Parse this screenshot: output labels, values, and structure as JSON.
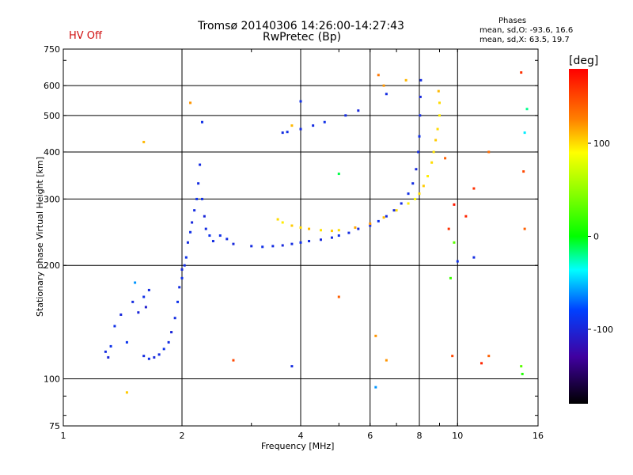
{
  "header": {
    "title_line1": "Tromsø 20140306 14:26:00-14:27:43",
    "title_line2": "RwPretec (Bp)",
    "status": "HV Off"
  },
  "phase_stats": {
    "title": "Phases",
    "line_o": "mean, sd,O: -93.6, 16.6",
    "line_x": "mean, sd,X:  63.5, 19.7"
  },
  "colors": {
    "status_text": "#d01010",
    "grid": "#000000"
  },
  "chart_data": {
    "type": "scatter",
    "xlabel": "Frequency [MHz]",
    "ylabel": "Stationary phase Virtual Height [km]",
    "x_scale": "log",
    "y_scale": "log",
    "xlim": [
      1,
      16
    ],
    "ylim": [
      75,
      750
    ],
    "x_ticks": [
      1,
      2,
      4,
      6,
      8,
      10,
      16
    ],
    "y_ticks": [
      75,
      100,
      200,
      300,
      400,
      500,
      600,
      750
    ],
    "grid": true,
    "colorbar": {
      "label": "[deg]",
      "ticks": [
        100,
        0,
        -100
      ],
      "range": [
        -180,
        180
      ]
    },
    "series": [
      {
        "values": [
          [
            1.28,
            118,
            -95
          ],
          [
            1.3,
            114,
            -100
          ],
          [
            1.32,
            122,
            -90
          ],
          [
            1.35,
            138,
            -92
          ],
          [
            1.4,
            148,
            -98
          ],
          [
            1.45,
            125,
            -88
          ],
          [
            1.5,
            160,
            -95
          ],
          [
            1.52,
            180,
            -60
          ],
          [
            1.55,
            150,
            -100
          ],
          [
            1.6,
            165,
            -92
          ],
          [
            1.62,
            155,
            -105
          ],
          [
            1.65,
            172,
            -95
          ],
          [
            1.6,
            115,
            -95
          ],
          [
            1.65,
            113,
            -92
          ],
          [
            1.7,
            114,
            -98
          ],
          [
            1.75,
            116,
            -95
          ],
          [
            1.8,
            120,
            -90
          ],
          [
            1.85,
            125,
            -95
          ],
          [
            1.88,
            133,
            -100
          ],
          [
            1.92,
            145,
            -95
          ],
          [
            1.95,
            160,
            -90
          ],
          [
            1.97,
            175,
            -95
          ],
          [
            2.0,
            185,
            -92
          ],
          [
            2.0,
            195,
            -98
          ],
          [
            2.03,
            200,
            -95
          ],
          [
            2.05,
            210,
            -90
          ],
          [
            2.07,
            230,
            -95
          ],
          [
            2.1,
            245,
            -92
          ],
          [
            2.12,
            260,
            -98
          ],
          [
            2.15,
            280,
            -95
          ],
          [
            2.18,
            300,
            -90
          ],
          [
            2.2,
            330,
            -95
          ],
          [
            2.22,
            370,
            -95
          ],
          [
            2.25,
            300,
            -92
          ],
          [
            2.28,
            270,
            -100
          ],
          [
            2.3,
            250,
            -95
          ],
          [
            2.35,
            240,
            -90
          ],
          [
            2.4,
            232,
            -95
          ],
          [
            2.5,
            240,
            -92
          ],
          [
            2.6,
            235,
            -95
          ],
          [
            2.7,
            228,
            -98
          ],
          [
            3.0,
            225,
            -95
          ],
          [
            3.2,
            224,
            -92
          ],
          [
            3.4,
            225,
            -95
          ],
          [
            3.6,
            226,
            -98
          ],
          [
            3.8,
            228,
            -95
          ],
          [
            4.0,
            230,
            -92
          ],
          [
            4.2,
            232,
            -95
          ],
          [
            4.5,
            234,
            -98
          ],
          [
            4.8,
            237,
            -95
          ],
          [
            5.0,
            240,
            -92
          ],
          [
            5.3,
            244,
            -95
          ],
          [
            5.6,
            250,
            -98
          ],
          [
            6.0,
            255,
            -95
          ],
          [
            6.3,
            262,
            -92
          ],
          [
            6.6,
            270,
            -95
          ],
          [
            6.9,
            280,
            -98
          ],
          [
            7.2,
            292,
            -95
          ],
          [
            7.5,
            310,
            -92
          ],
          [
            7.7,
            330,
            -95
          ],
          [
            7.85,
            360,
            -98
          ],
          [
            7.95,
            400,
            -95
          ],
          [
            8.0,
            440,
            -92
          ],
          [
            8.03,
            500,
            -95
          ],
          [
            8.05,
            560,
            -98
          ],
          [
            8.07,
            620,
            -95
          ],
          [
            3.6,
            450,
            -95
          ],
          [
            3.7,
            452,
            -92
          ],
          [
            4.0,
            460,
            -95
          ],
          [
            4.3,
            470,
            -95
          ],
          [
            4.6,
            480,
            -92
          ],
          [
            5.2,
            500,
            -95
          ],
          [
            5.6,
            515,
            -98
          ],
          [
            6.6,
            570,
            -95
          ],
          [
            4.0,
            545,
            -92
          ],
          [
            3.8,
            108,
            -95
          ],
          [
            2.25,
            480,
            -92
          ],
          [
            6.2,
            95,
            -60
          ],
          [
            11.0,
            210,
            -95
          ],
          [
            10.0,
            205,
            -90
          ]
        ]
      },
      {
        "values": [
          [
            3.5,
            265,
            100
          ],
          [
            3.6,
            260,
            95
          ],
          [
            3.8,
            255,
            105
          ],
          [
            4.0,
            252,
            100
          ],
          [
            4.2,
            250,
            110
          ],
          [
            4.5,
            248,
            98
          ],
          [
            4.8,
            247,
            105
          ],
          [
            5.0,
            248,
            100
          ],
          [
            5.5,
            252,
            115
          ],
          [
            6.0,
            258,
            120
          ],
          [
            6.5,
            268,
            110
          ],
          [
            7.0,
            280,
            100
          ],
          [
            7.5,
            292,
            95
          ],
          [
            7.8,
            300,
            90
          ],
          [
            8.0,
            310,
            100
          ],
          [
            8.2,
            325,
            105
          ],
          [
            8.4,
            345,
            95
          ],
          [
            8.6,
            375,
            100
          ],
          [
            8.7,
            400,
            98
          ],
          [
            8.8,
            430,
            105
          ],
          [
            8.9,
            460,
            100
          ],
          [
            9.0,
            500,
            95
          ],
          [
            9.0,
            540,
            100
          ],
          [
            8.95,
            580,
            110
          ],
          [
            7.4,
            620,
            110
          ],
          [
            6.5,
            600,
            120
          ],
          [
            3.8,
            470,
            110
          ],
          [
            2.1,
            540,
            120
          ],
          [
            1.45,
            92,
            105
          ],
          [
            1.6,
            425,
            110
          ],
          [
            2.7,
            112,
            150
          ],
          [
            6.6,
            112,
            120
          ],
          [
            5.0,
            165,
            140
          ],
          [
            6.3,
            640,
            130
          ]
        ]
      },
      {
        "values": [
          [
            9.3,
            385,
            140
          ],
          [
            9.5,
            250,
            160
          ],
          [
            9.8,
            290,
            170
          ],
          [
            10.5,
            270,
            165
          ],
          [
            11.0,
            320,
            160
          ],
          [
            11.5,
            110,
            165
          ],
          [
            12.0,
            400,
            135
          ],
          [
            14.5,
            650,
            160
          ],
          [
            14.7,
            355,
            150
          ],
          [
            14.8,
            250,
            140
          ],
          [
            15.0,
            520,
            -20
          ],
          [
            14.8,
            450,
            -40
          ],
          [
            14.5,
            108,
            30
          ],
          [
            14.6,
            103,
            10
          ],
          [
            5.0,
            350,
            -10
          ],
          [
            9.6,
            185,
            20
          ],
          [
            9.8,
            230,
            30
          ],
          [
            6.2,
            130,
            120
          ],
          [
            9.7,
            115,
            150
          ],
          [
            12.0,
            115,
            140
          ]
        ]
      }
    ]
  }
}
